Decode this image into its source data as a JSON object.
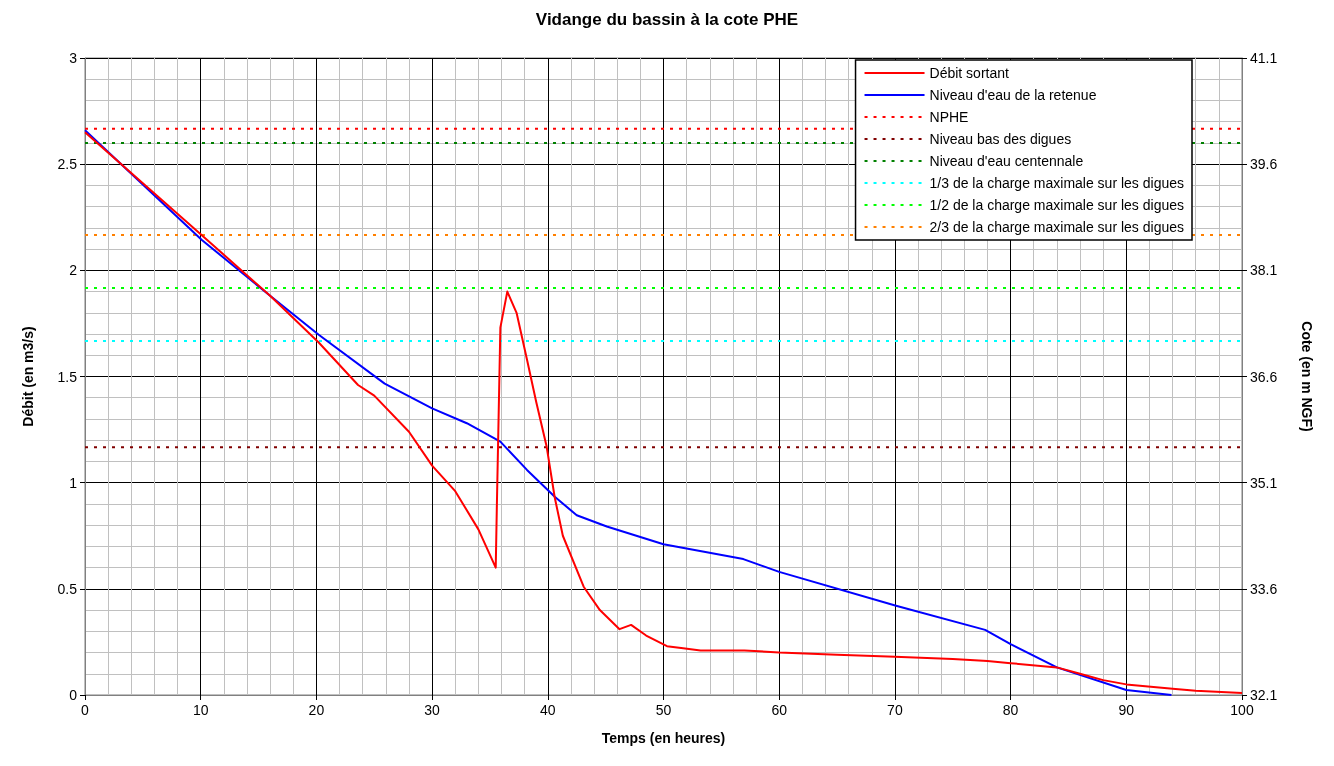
{
  "chart_data": {
    "type": "line",
    "title": "Vidange du bassin à la cote PHE",
    "xlabel": "Temps (en heures)",
    "ylabel": "Débit (en m3/s)",
    "y2label": "Cote (en m NGF)",
    "xlim": [
      0,
      100
    ],
    "xticks": [
      0,
      10,
      20,
      30,
      40,
      50,
      60,
      70,
      80,
      90,
      100
    ],
    "ylim": [
      0,
      3
    ],
    "yticks": [
      0,
      0.5,
      1,
      1.5,
      2,
      2.5,
      3
    ],
    "y2lim": [
      32.1,
      41.1
    ],
    "y2ticks": [
      32.1,
      33.6,
      35.1,
      36.6,
      38.1,
      39.6,
      41.1
    ],
    "grid": true,
    "legend": "top right",
    "marker": "none",
    "series": [
      {
        "name": "Débit sortant",
        "color": "#ff0000",
        "line_style": "solid",
        "x": [
          0,
          10,
          16,
          20.2,
          23.6,
          25,
          28,
          30,
          32,
          34,
          35.5,
          35.6,
          35.9,
          36.5,
          37.3,
          38.2,
          39,
          39.9,
          40.6,
          41.3,
          43.1,
          44.5,
          46.2,
          47.2,
          48.5,
          50.3,
          51.7,
          53.2,
          57,
          60,
          65,
          70,
          75,
          78,
          80,
          84,
          86,
          88,
          90,
          94,
          96,
          100
        ],
        "values": [
          2.65,
          2.17,
          1.88,
          1.66,
          1.46,
          1.41,
          1.24,
          1.08,
          0.96,
          0.78,
          0.6,
          0.9,
          1.73,
          1.9,
          1.8,
          1.58,
          1.38,
          1.17,
          0.93,
          0.75,
          0.51,
          0.4,
          0.31,
          0.33,
          0.28,
          0.23,
          0.22,
          0.21,
          0.21,
          0.2,
          0.19,
          0.18,
          0.17,
          0.16,
          0.15,
          0.13,
          0.1,
          0.07,
          0.05,
          0.03,
          0.02,
          0.01
        ]
      },
      {
        "name": "Niveau d'eau de la retenue",
        "color": "#0000ff",
        "line_style": "solid",
        "axis": "y2",
        "x": [
          0,
          10.1,
          16,
          20.2,
          25.9,
          30,
          33,
          35.9,
          38.2,
          40.6,
          42.5,
          45.1,
          50,
          56.9,
          60,
          70.1,
          77.8,
          80,
          84,
          90,
          93.9
        ],
        "values": [
          40.08,
          38.53,
          37.74,
          37.19,
          36.5,
          36.15,
          35.94,
          35.68,
          35.28,
          34.9,
          34.64,
          34.48,
          34.23,
          34.02,
          33.84,
          33.36,
          33.02,
          32.82,
          32.49,
          32.17,
          32.1
        ]
      },
      {
        "name": "NPHE",
        "color": "#ff0000",
        "line_style": "dotted",
        "axis": "y2",
        "x": [
          0,
          100
        ],
        "values": [
          40.1,
          40.1
        ]
      },
      {
        "name": "Niveau bas des digues",
        "color": "#800000",
        "line_style": "dotted",
        "axis": "y2",
        "x": [
          0,
          100
        ],
        "values": [
          35.6,
          35.6
        ]
      },
      {
        "name": "Niveau d'eau centennale",
        "color": "#008000",
        "line_style": "dotted",
        "axis": "y2",
        "x": [
          0,
          100
        ],
        "values": [
          39.9,
          39.9
        ]
      },
      {
        "name": "1/3 de la charge maximale sur les digues",
        "color": "#00ffff",
        "line_style": "dotted",
        "axis": "y2",
        "x": [
          0,
          100
        ],
        "values": [
          37.1,
          37.1
        ]
      },
      {
        "name": "1/2 de la charge maximale sur les digues",
        "color": "#00ff00",
        "line_style": "dotted",
        "axis": "y2",
        "x": [
          0,
          100
        ],
        "values": [
          37.85,
          37.85
        ]
      },
      {
        "name": "2/3 de la charge maximale sur les digues",
        "color": "#ff8000",
        "line_style": "dotted",
        "axis": "y2",
        "x": [
          0,
          100
        ],
        "values": [
          38.6,
          38.6
        ]
      }
    ]
  }
}
